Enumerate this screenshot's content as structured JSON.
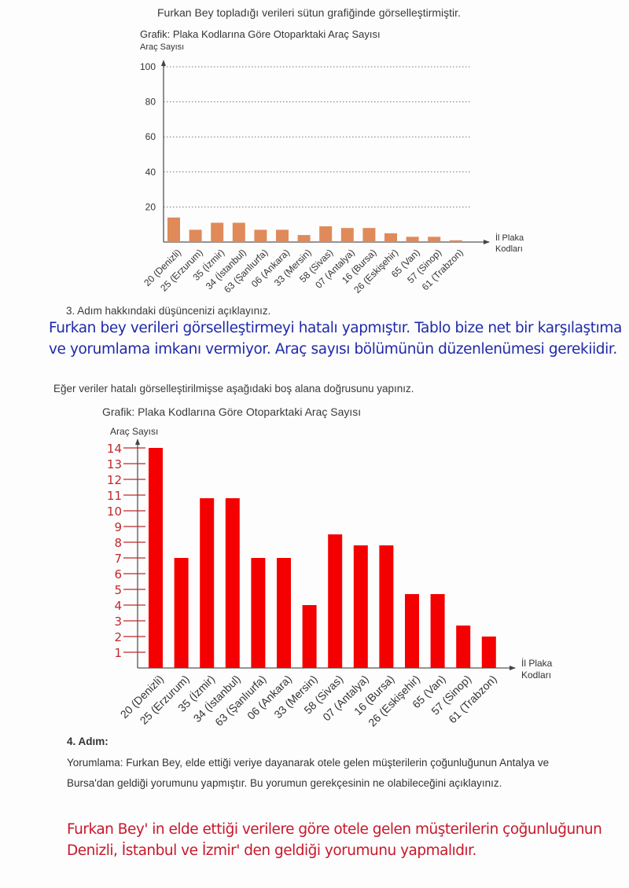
{
  "intro": "Furkan Bey topladığı verileri sütun grafiğinde görselleştirmiştir.",
  "step3": {
    "question": "3. Adım hakkındaki düşüncenizi açıklayınız.",
    "answer": "Furkan bey verileri görselleştirmeyi hatalı yapmıştır. Tablo bize net bir karşılaştıma ve yorumlama imkanı vermiyor. Araç sayısı bölümünün düzenlenümesi gerekiidir.",
    "instruction": "Eğer veriler hatalı görselleştirilmişse aşağıdaki boş alana doğrusunu yapınız."
  },
  "step4": {
    "heading": "4. Adım:",
    "question": "Yorumlama: Furkan Bey, elde ettiği veriye dayanarak otele gelen müşterilerin çoğunluğunun Antalya ve Bursa'dan geldiği yorumunu yapmıştır. Bu yorumun gerekçesinin ne olabileceğini açıklayınız.",
    "answer": "Furkan Bey' in elde ettiği verilere göre otele gelen müşterilerin çoğunluğunun Denizli, İstanbul ve İzmir' den geldiği yorumunu yapmalıdır."
  },
  "chart_data": [
    {
      "type": "bar",
      "title": "Grafik: Plaka Kodlarına Göre Otoparktaki Araç Sayısı",
      "ylabel": "Araç Sayısı",
      "xlabel": "İl Plaka Kodları",
      "categories": [
        "20 (Denizli)",
        "25 (Erzurum)",
        "35 (İzmir)",
        "34 (İstanbul)",
        "63 (Şanlıurfa)",
        "06 (Ankara)",
        "33 (Mersin)",
        "58 (Sivas)",
        "07 (Antalya)",
        "16 (Bursa)",
        "26 (Eskişehir)",
        "65 (Van)",
        "57 (Sinop)",
        "61 (Trabzon)"
      ],
      "values": [
        14,
        7,
        11,
        11,
        7,
        7,
        4,
        9,
        8,
        8,
        5,
        3,
        3,
        1
      ],
      "yticks": [
        20,
        40,
        60,
        80,
        100
      ],
      "ylim": [
        0,
        100
      ],
      "grid": true,
      "color": "#e08a5a"
    },
    {
      "type": "bar",
      "title": "Grafik: Plaka Kodlarına Göre Otoparktaki Araç Sayısı",
      "ylabel": "Araç Sayısı",
      "xlabel": "İl Plaka Kodları",
      "categories": [
        "20 (Denizli)",
        "25 (Erzurum)",
        "35 (İzmir)",
        "34 (İstanbul)",
        "63 (Şanlıurfa)",
        "06 (Ankara)",
        "33 (Mersin)",
        "58 (Sivas)",
        "07 (Antalya)",
        "16 (Bursa)",
        "26 (Eskişehir)",
        "65 (Van)",
        "57 (Sinop)",
        "61 (Trabzon)"
      ],
      "values": [
        14,
        7,
        10.8,
        10.8,
        7,
        7,
        4,
        8.5,
        7.8,
        7.8,
        4.7,
        4.7,
        2.7,
        2
      ],
      "yticks": [
        1,
        2,
        3,
        4,
        5,
        6,
        7,
        8,
        9,
        10,
        11,
        12,
        13,
        14
      ],
      "ylim": [
        0,
        14
      ],
      "grid": false,
      "color": "#f40000"
    }
  ]
}
